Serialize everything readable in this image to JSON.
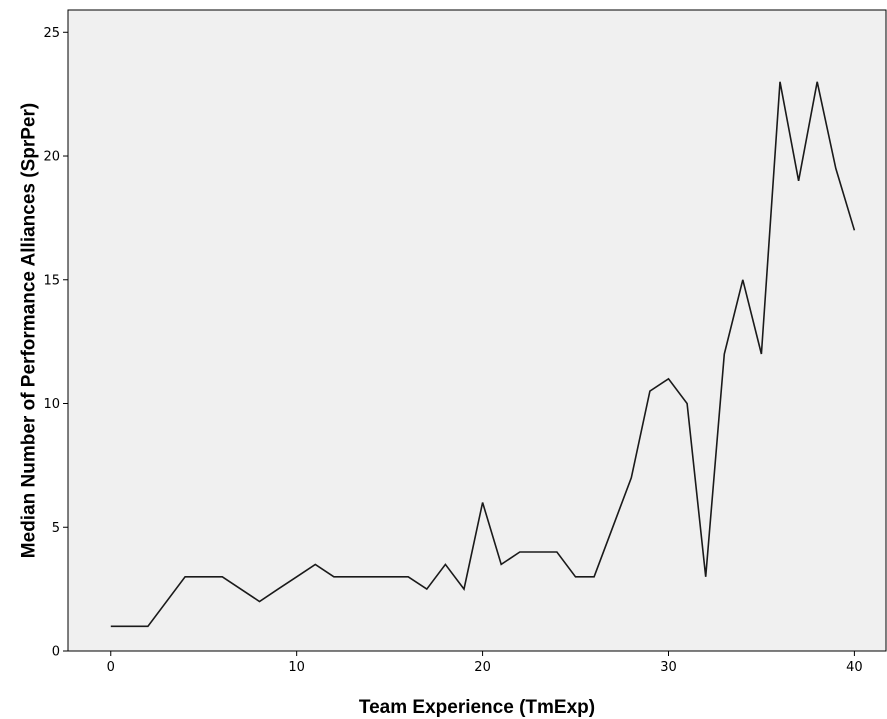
{
  "chart_data": {
    "type": "line",
    "title": "",
    "xlabel": "Team Experience (TmExp)",
    "ylabel": "Median Number of Performance Alliances (SprPer)",
    "xlim": [
      -2.3,
      41.7
    ],
    "ylim": [
      0,
      25.9
    ],
    "xticks": [
      0,
      10,
      20,
      30,
      40
    ],
    "yticks": [
      0,
      5,
      10,
      15,
      20,
      25
    ],
    "grid": false,
    "legend": "none",
    "colors": {
      "plot_background": "#f0f0f0",
      "line": "#1a1a1a",
      "axis": "#000000"
    },
    "series": [
      {
        "x": [
          0,
          1,
          2,
          4,
          5,
          6,
          8,
          9,
          10,
          11,
          12,
          13,
          14,
          15,
          16,
          17,
          18,
          19,
          20,
          21,
          22,
          23,
          24,
          25,
          26,
          27,
          28,
          29,
          30,
          31,
          32,
          33,
          34,
          35,
          36,
          37,
          38,
          39,
          40
        ],
        "y": [
          1,
          1,
          1,
          3,
          3,
          3,
          2,
          2.5,
          3,
          3.5,
          3,
          3,
          3,
          3,
          3,
          2.5,
          3.5,
          2.5,
          6,
          3.5,
          4,
          4,
          4,
          3,
          3,
          5,
          7,
          10.5,
          11,
          10,
          3,
          12,
          15,
          12,
          23,
          19,
          23,
          19.5,
          17
        ]
      }
    ]
  }
}
